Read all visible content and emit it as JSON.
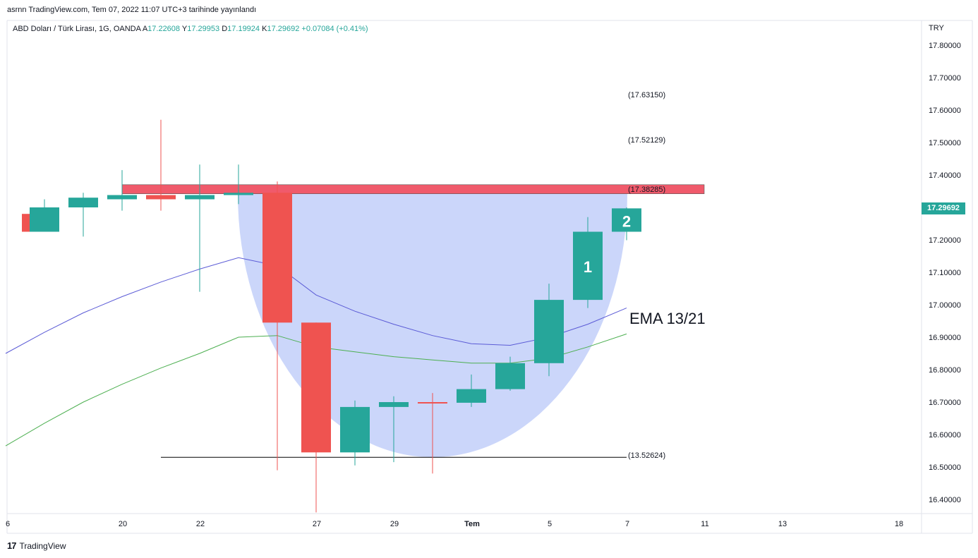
{
  "header": {
    "published_text": "asrnn TradingView.com, Tem 07, 2022 11:07 UTC+3 tarihinde yayınlandı"
  },
  "legend": {
    "symbol": "ABD Doları / Türk Lirası, 1G, OANDA",
    "open_label": "A",
    "open_value": "17.22608",
    "high_label": "Y",
    "high_value": "17.29953",
    "low_label": "D",
    "low_value": "17.19924",
    "close_label": "K",
    "close_value": "17.29692",
    "change": "+0.07084 (+0.41%)"
  },
  "price_axis": {
    "currency": "TRY",
    "last_price": "17.29692"
  },
  "footer": {
    "logo": "17",
    "brand": "TradingView"
  },
  "colors": {
    "up": "#26a69a",
    "down": "#ef5350",
    "ema13": "#5b5bd6",
    "ema21": "#4caf50",
    "cup_fill": "#c5d2fa",
    "resistance": "#f05a6b"
  },
  "chart_data": {
    "type": "candlestick",
    "ylim": [
      16.36,
      17.88
    ],
    "y_ticks": [
      17.8,
      17.7,
      17.6,
      17.5,
      17.4,
      17.3,
      17.2,
      17.1,
      17.0,
      16.9,
      16.8,
      16.7,
      16.6,
      16.5,
      16.4
    ],
    "x_ticks": [
      {
        "label": "6",
        "i": -1
      },
      {
        "label": "20",
        "i": 2
      },
      {
        "label": "22",
        "i": 4
      },
      {
        "label": "27",
        "i": 7
      },
      {
        "label": "29",
        "i": 9
      },
      {
        "label": "Tem",
        "i": 11
      },
      {
        "label": "5",
        "i": 13
      },
      {
        "label": "7",
        "i": 15
      },
      {
        "label": "11",
        "i": 17
      },
      {
        "label": "13",
        "i": 19
      },
      {
        "label": "18",
        "i": 22
      }
    ],
    "candles": [
      {
        "i": -0.2,
        "o": 17.28,
        "h": 17.28,
        "l": 17.225,
        "c": 17.225
      },
      {
        "i": 0,
        "o": 17.225,
        "h": 17.325,
        "l": 17.225,
        "c": 17.3
      },
      {
        "i": 1,
        "o": 17.3,
        "h": 17.345,
        "l": 17.21,
        "c": 17.33
      },
      {
        "i": 2,
        "o": 17.325,
        "h": 17.415,
        "l": 17.29,
        "c": 17.338
      },
      {
        "i": 3,
        "o": 17.338,
        "h": 17.57,
        "l": 17.29,
        "c": 17.325
      },
      {
        "i": 4,
        "o": 17.325,
        "h": 17.432,
        "l": 17.04,
        "c": 17.338
      },
      {
        "i": 5,
        "o": 17.338,
        "h": 17.432,
        "l": 17.31,
        "c": 17.345
      },
      {
        "i": 6,
        "o": 17.345,
        "h": 17.38,
        "l": 16.49,
        "c": 16.945
      },
      {
        "i": 7,
        "o": 16.945,
        "h": 16.945,
        "l": 16.36,
        "c": 16.545
      },
      {
        "i": 8,
        "o": 16.545,
        "h": 16.705,
        "l": 16.505,
        "c": 16.685
      },
      {
        "i": 9,
        "o": 16.685,
        "h": 16.718,
        "l": 16.515,
        "c": 16.7
      },
      {
        "i": 10,
        "o": 16.7,
        "h": 16.728,
        "l": 16.48,
        "c": 16.698
      },
      {
        "i": 11,
        "o": 16.698,
        "h": 16.785,
        "l": 16.685,
        "c": 16.74
      },
      {
        "i": 12,
        "o": 16.74,
        "h": 16.84,
        "l": 16.735,
        "c": 16.82
      },
      {
        "i": 13,
        "o": 16.82,
        "h": 17.065,
        "l": 16.78,
        "c": 17.015
      },
      {
        "i": 14,
        "o": 17.015,
        "h": 17.27,
        "l": 16.99,
        "c": 17.225
      },
      {
        "i": 15,
        "o": 17.225,
        "h": 17.3,
        "l": 17.199,
        "c": 17.297
      }
    ],
    "series": [
      {
        "name": "EMA 13",
        "x": [
          -1,
          0,
          1,
          2,
          3,
          4,
          5,
          6,
          7,
          8,
          9,
          10,
          11,
          12,
          13,
          14,
          15
        ],
        "values": [
          16.85,
          16.915,
          16.975,
          17.025,
          17.07,
          17.11,
          17.145,
          17.12,
          17.03,
          16.98,
          16.94,
          16.905,
          16.88,
          16.875,
          16.9,
          16.94,
          16.99
        ]
      },
      {
        "name": "EMA 21",
        "x": [
          -1,
          0,
          1,
          2,
          3,
          4,
          5,
          6,
          7,
          8,
          9,
          10,
          11,
          12,
          13,
          14,
          15
        ],
        "values": [
          16.565,
          16.635,
          16.7,
          16.755,
          16.805,
          16.85,
          16.9,
          16.905,
          16.87,
          16.855,
          16.84,
          16.83,
          16.82,
          16.82,
          16.835,
          16.87,
          16.91
        ]
      }
    ],
    "resistance_zone": {
      "x_start": 2,
      "x_end": 17,
      "top": 17.37,
      "bottom": 17.342
    },
    "support_line": {
      "x_start": 3,
      "x_end": 15,
      "value": 16.53
    },
    "annotations": {
      "price_labels": [
        "(17.63150)",
        "(17.52129)",
        "(17.38285)",
        "(13.52624)"
      ],
      "ema_label": "EMA 13/21",
      "wave_1": "1",
      "wave_2": "2"
    }
  }
}
